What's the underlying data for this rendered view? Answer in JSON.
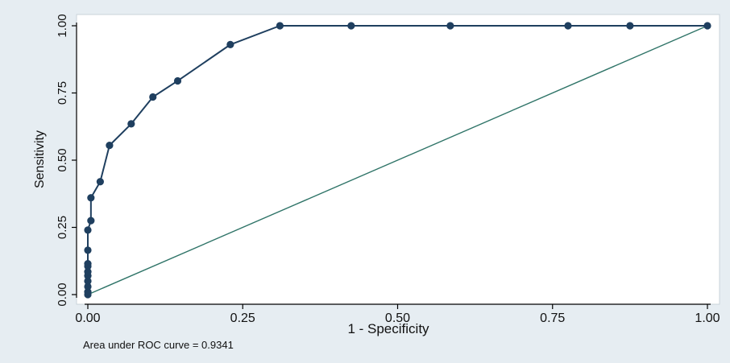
{
  "colors": {
    "background": "#e6edf2",
    "plot_background": "#ffffff",
    "curve": "#1f3f5f",
    "marker": "#1f3f5f",
    "reference_line": "#2f7468",
    "axis": "#000000",
    "text": "#111111"
  },
  "chart_data": {
    "type": "line",
    "title": "",
    "xlabel": "1 - Specificity",
    "ylabel": "Sensitivity",
    "xlim": [
      0,
      1
    ],
    "ylim": [
      0,
      1
    ],
    "x_ticks": [
      0,
      0.25,
      0.5,
      0.75,
      1
    ],
    "x_tick_labels": [
      "0.00",
      "0.25",
      "0.50",
      "0.75",
      "1.00"
    ],
    "y_ticks": [
      0,
      0.25,
      0.5,
      0.75,
      1
    ],
    "y_tick_labels": [
      "0.00",
      "0.25",
      "0.50",
      "0.75",
      "1.00"
    ],
    "grid": false,
    "note": "Area under ROC curve = 0.9341",
    "series": [
      {
        "role": "roc-curve",
        "marker": "circle",
        "points": [
          [
            0,
            0
          ],
          [
            0,
            0.01
          ],
          [
            0,
            0.03
          ],
          [
            0,
            0.05
          ],
          [
            0,
            0.07
          ],
          [
            0,
            0.085
          ],
          [
            0,
            0.105
          ],
          [
            0,
            0.115
          ],
          [
            0,
            0.165
          ],
          [
            0,
            0.24
          ],
          [
            0.005,
            0.275
          ],
          [
            0.005,
            0.36
          ],
          [
            0.02,
            0.42
          ],
          [
            0.035,
            0.555
          ],
          [
            0.07,
            0.635
          ],
          [
            0.105,
            0.735
          ],
          [
            0.145,
            0.795
          ],
          [
            0.23,
            0.93
          ],
          [
            0.31,
            1
          ],
          [
            0.425,
            1
          ],
          [
            0.585,
            1
          ],
          [
            0.775,
            1
          ],
          [
            0.875,
            1
          ],
          [
            1,
            1
          ]
        ]
      },
      {
        "role": "reference-line",
        "marker": "none",
        "points": [
          [
            0,
            0
          ],
          [
            1,
            1
          ]
        ]
      }
    ]
  }
}
